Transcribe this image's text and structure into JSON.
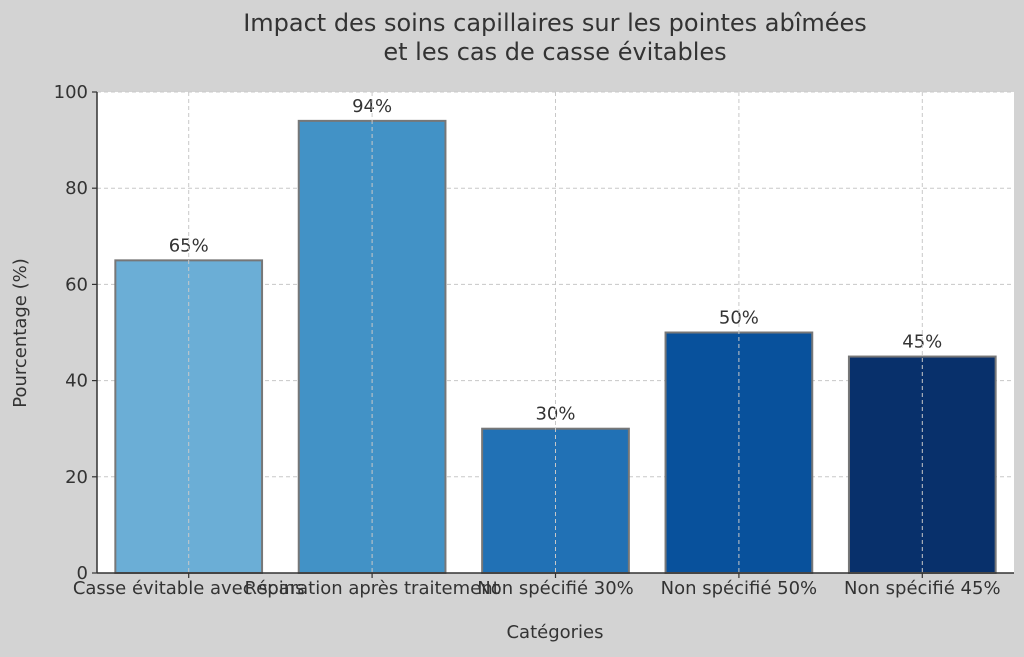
{
  "chart_data": {
    "type": "bar",
    "title_lines": [
      "Impact des soins capillaires sur les pointes abîmées",
      "et les cas de casse évitables"
    ],
    "xlabel": "Catégories",
    "ylabel": "Pourcentage (%)",
    "categories": [
      "Casse évitable avec soins",
      "Réparation après traitement",
      "Non spécifié 30%",
      "Non spécifié 50%",
      "Non spécifié 45%"
    ],
    "values": [
      65,
      94,
      30,
      50,
      45
    ],
    "data_labels": [
      "65%",
      "94%",
      "30%",
      "50%",
      "45%"
    ],
    "colors": [
      "#6baed6",
      "#4292c6",
      "#2171b5",
      "#08519c",
      "#08306b"
    ],
    "ylim": [
      0,
      100
    ],
    "yticks": [
      0,
      20,
      40,
      60,
      80,
      100
    ],
    "grid": true,
    "legend": "none"
  }
}
